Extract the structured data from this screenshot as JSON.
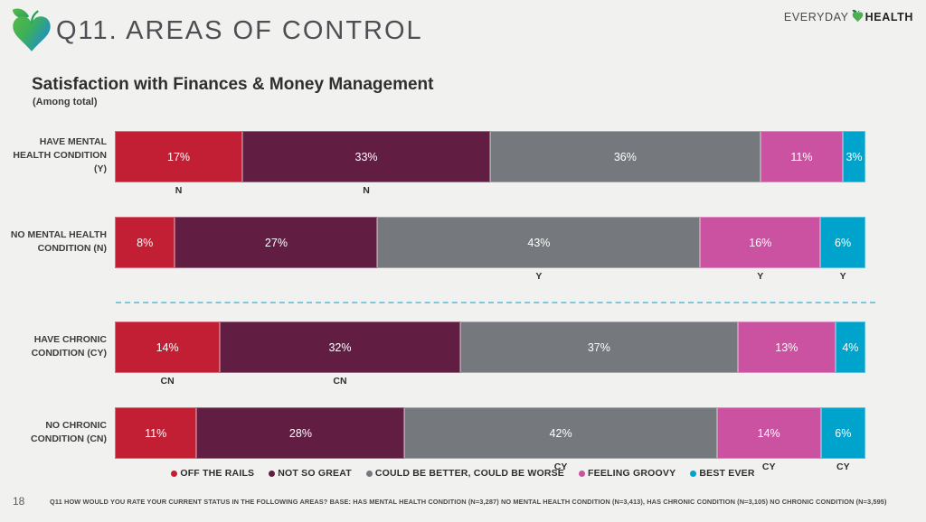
{
  "slide": {
    "background": "#f1f1ef"
  },
  "header": {
    "title": "Q11. AREAS OF CONTROL",
    "brand_part1": "EVERYDAY",
    "brand_part2": "HEALTH"
  },
  "chart": {
    "title": "Satisfaction with Finances & Money Management",
    "subtitle": "(Among total)"
  },
  "footer": {
    "page_number": "18",
    "note": "Q11 HOW WOULD YOU RATE YOUR CURRENT STATUS IN THE FOLLOWING AREAS? BASE: HAS MENTAL HEALTH CONDITION (N=3,287) NO MENTAL HEALTH CONDITION (N=3,413), HAS CHRONIC CONDITION (N=3,105) NO CHRONIC CONDITION (N=3,595)"
  },
  "chart_data": {
    "type": "bar",
    "orientation": "horizontal-stacked",
    "title": "Satisfaction with Finances & Money Management",
    "subtitle": "(Among total)",
    "categories": [
      "HAVE MENTAL HEALTH CONDITION (Y)",
      "NO MENTAL HEALTH CONDITION (N)",
      "HAVE CHRONIC CONDITION (CY)",
      "NO CHRONIC CONDITION (CN)"
    ],
    "series": [
      {
        "name": "OFF THE RAILS",
        "color": "#c21f35",
        "values": [
          17,
          8,
          14,
          11
        ]
      },
      {
        "name": "NOT SO GREAT",
        "color": "#611e42",
        "values": [
          33,
          27,
          32,
          28
        ]
      },
      {
        "name": "COULD BE BETTER, COULD BE WORSE",
        "color": "#75787c",
        "values": [
          36,
          43,
          37,
          42
        ]
      },
      {
        "name": "FEELING GROOVY",
        "color": "#cb51a1",
        "values": [
          11,
          16,
          13,
          14
        ]
      },
      {
        "name": "BEST EVER",
        "color": "#00a3cb",
        "values": [
          3,
          6,
          4,
          6
        ]
      }
    ],
    "significance_labels": [
      [
        "N",
        "N",
        "",
        "",
        ""
      ],
      [
        "",
        "",
        "Y",
        "Y",
        "Y"
      ],
      [
        "CN",
        "CN",
        "",
        "",
        ""
      ],
      [
        "",
        "",
        "CY",
        "CY",
        "CY"
      ]
    ],
    "divider_after_row": 1,
    "divider_color": "#7ec7dd",
    "value_suffix": "%",
    "xlim": [
      0,
      100
    ],
    "legend_position": "bottom",
    "grid": false
  }
}
